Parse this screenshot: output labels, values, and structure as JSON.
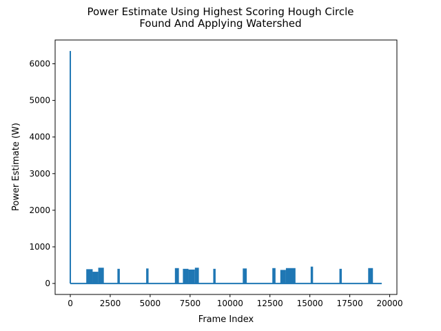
{
  "chart_data": {
    "type": "line",
    "title_lines": [
      "Power Estimate Using Highest Scoring Hough Circle",
      "Found And Applying Watershed"
    ],
    "xlabel": "Frame Index",
    "ylabel": "Power Estimate (W)",
    "xlim": [
      -950,
      20450
    ],
    "ylim": [
      -300,
      6650
    ],
    "xticks": [
      0,
      2500,
      5000,
      7500,
      10000,
      12500,
      15000,
      17500,
      20000
    ],
    "yticks": [
      0,
      1000,
      2000,
      3000,
      4000,
      5000,
      6000
    ],
    "grid": false,
    "legend": "none",
    "series_color": "#1f77b4",
    "spike": {
      "x": 0,
      "x_end": 20,
      "peak": 6350
    },
    "baseline": {
      "x_start": 0,
      "x_end": 19500,
      "value": 0
    },
    "bursts": [
      {
        "x_start": 1000,
        "x_end": 1400,
        "peak": 390
      },
      {
        "x_start": 1400,
        "x_end": 1750,
        "peak": 320
      },
      {
        "x_start": 1750,
        "x_end": 2100,
        "peak": 430
      },
      {
        "x_start": 2950,
        "x_end": 3100,
        "peak": 400
      },
      {
        "x_start": 4750,
        "x_end": 4900,
        "peak": 410
      },
      {
        "x_start": 6550,
        "x_end": 6800,
        "peak": 420
      },
      {
        "x_start": 7050,
        "x_end": 7400,
        "peak": 400
      },
      {
        "x_start": 7400,
        "x_end": 7800,
        "peak": 380
      },
      {
        "x_start": 7800,
        "x_end": 8050,
        "peak": 430
      },
      {
        "x_start": 8950,
        "x_end": 9100,
        "peak": 400
      },
      {
        "x_start": 10800,
        "x_end": 11050,
        "peak": 410
      },
      {
        "x_start": 12650,
        "x_end": 12850,
        "peak": 420
      },
      {
        "x_start": 13150,
        "x_end": 13500,
        "peak": 370
      },
      {
        "x_start": 13500,
        "x_end": 14100,
        "peak": 420
      },
      {
        "x_start": 15050,
        "x_end": 15200,
        "peak": 460
      },
      {
        "x_start": 16850,
        "x_end": 17000,
        "peak": 400
      },
      {
        "x_start": 18650,
        "x_end": 18950,
        "peak": 420
      }
    ]
  }
}
